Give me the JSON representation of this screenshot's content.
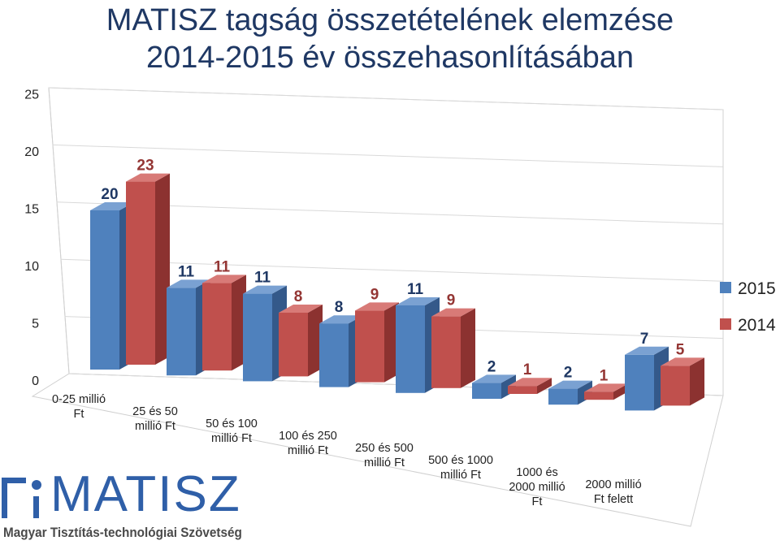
{
  "chart_data": {
    "type": "bar",
    "title": "MATISZ tagság összetételének elemzése",
    "subtitle": "2014-2015 év összehasonlításában",
    "categories": [
      [
        "0-25 millió",
        "Ft"
      ],
      [
        "25 és 50",
        "millió Ft"
      ],
      [
        "50 és 100",
        "millió Ft"
      ],
      [
        "100 és 250",
        "millió Ft"
      ],
      [
        "250 és 500",
        "millió Ft"
      ],
      [
        "500 és 1000",
        "millió Ft"
      ],
      [
        "1000 és",
        "2000 millió",
        "Ft"
      ],
      [
        "2000 millió",
        "Ft felett"
      ]
    ],
    "series": [
      {
        "name": "2015",
        "values": [
          20,
          11,
          11,
          8,
          11,
          2,
          2,
          7
        ],
        "labels": [
          "20",
          "11",
          "11",
          "8",
          "11",
          "2",
          "2",
          "7"
        ],
        "color": "#4f81bd"
      },
      {
        "name": "2014",
        "values": [
          23,
          11,
          8,
          9,
          9,
          1,
          1,
          5
        ],
        "labels": [
          "23",
          "11",
          "8",
          "9",
          "9",
          "1",
          "1",
          "5"
        ],
        "color": "#c0504d"
      }
    ],
    "y_ticks": [
      "0",
      "5",
      "10",
      "15",
      "20",
      "25"
    ],
    "ylim": [
      0,
      25
    ],
    "grid": true,
    "legend": "right",
    "three_d": true
  },
  "logo": {
    "word": "MATISZ",
    "subtitle": "Magyar Tisztítás-technológiai Szövetség"
  }
}
